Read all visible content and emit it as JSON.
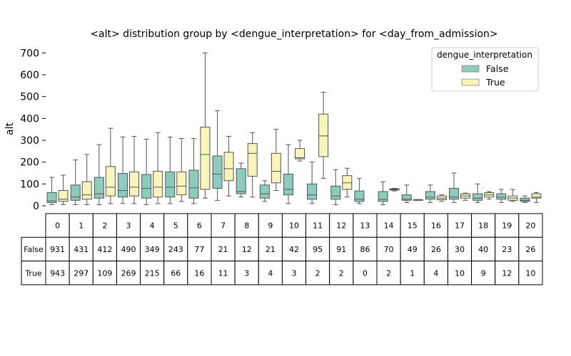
{
  "chart_data": {
    "type": "box",
    "title": "<alt> distribution group by <dengue_interpretation> for <day_from_admission>",
    "ylabel": "alt",
    "ylim": [
      0,
      750
    ],
    "yticks": [
      0,
      100,
      200,
      300,
      400,
      500,
      600,
      700
    ],
    "categories": [
      "0",
      "1",
      "2",
      "3",
      "4",
      "5",
      "6",
      "7",
      "8",
      "9",
      "10",
      "11",
      "12",
      "13",
      "14",
      "15",
      "16",
      "17",
      "18",
      "19",
      "20"
    ],
    "legend": {
      "title": "dengue_interpretation",
      "position": "top-right"
    },
    "series": [
      {
        "name": "False",
        "color": "#8dcbbd",
        "boxes": [
          {
            "whislo": 5,
            "q1": 15,
            "med": 22,
            "q3": 60,
            "whishi": 130
          },
          {
            "whislo": 5,
            "q1": 25,
            "med": 40,
            "q3": 95,
            "whishi": 210
          },
          {
            "whislo": 5,
            "q1": 35,
            "med": 55,
            "q3": 130,
            "whishi": 280
          },
          {
            "whislo": 10,
            "q1": 40,
            "med": 70,
            "q3": 148,
            "whishi": 315
          },
          {
            "whislo": 5,
            "q1": 35,
            "med": 80,
            "q3": 143,
            "whishi": 305
          },
          {
            "whislo": 10,
            "q1": 40,
            "med": 85,
            "q3": 155,
            "whishi": 315
          },
          {
            "whislo": 10,
            "q1": 35,
            "med": 82,
            "q3": 163,
            "whishi": 308
          },
          {
            "whislo": 25,
            "q1": 80,
            "med": 145,
            "q3": 228,
            "whishi": 435
          },
          {
            "whislo": 40,
            "q1": 55,
            "med": 65,
            "q3": 170,
            "whishi": 195
          },
          {
            "whislo": 20,
            "q1": 35,
            "med": 55,
            "q3": 95,
            "whishi": 115
          },
          {
            "whislo": 10,
            "q1": 50,
            "med": 75,
            "q3": 145,
            "whishi": 280
          },
          {
            "whislo": 10,
            "q1": 30,
            "med": 50,
            "q3": 100,
            "whishi": 200
          },
          {
            "whislo": 5,
            "q1": 30,
            "med": 45,
            "q3": 90,
            "whishi": 165
          },
          {
            "whislo": 10,
            "q1": 20,
            "med": 30,
            "q3": 68,
            "whishi": 125
          },
          {
            "whislo": 5,
            "q1": 20,
            "med": 30,
            "q3": 65,
            "whishi": 110
          },
          {
            "whislo": 15,
            "q1": 25,
            "med": 30,
            "q3": 50,
            "whishi": 95
          },
          {
            "whislo": 15,
            "q1": 30,
            "med": 40,
            "q3": 65,
            "whishi": 95
          },
          {
            "whislo": 15,
            "q1": 30,
            "med": 40,
            "q3": 80,
            "whishi": 150
          },
          {
            "whislo": 15,
            "q1": 25,
            "med": 35,
            "q3": 55,
            "whishi": 100
          },
          {
            "whislo": 15,
            "q1": 30,
            "med": 40,
            "q3": 55,
            "whishi": 75
          },
          {
            "whislo": 15,
            "q1": 20,
            "med": 25,
            "q3": 35,
            "whishi": 45
          }
        ]
      },
      {
        "name": "True",
        "color": "#f7f5bc",
        "boxes": [
          {
            "whislo": 5,
            "q1": 20,
            "med": 30,
            "q3": 70,
            "whishi": 140
          },
          {
            "whislo": 5,
            "q1": 30,
            "med": 50,
            "q3": 110,
            "whishi": 235
          },
          {
            "whislo": 10,
            "q1": 45,
            "med": 85,
            "q3": 180,
            "whishi": 355
          },
          {
            "whislo": 10,
            "q1": 45,
            "med": 85,
            "q3": 155,
            "whishi": 318
          },
          {
            "whislo": 10,
            "q1": 40,
            "med": 85,
            "q3": 158,
            "whishi": 335
          },
          {
            "whislo": 20,
            "q1": 50,
            "med": 90,
            "q3": 155,
            "whishi": 308
          },
          {
            "whislo": 35,
            "q1": 75,
            "med": 235,
            "q3": 360,
            "whishi": 700
          },
          {
            "whislo": 45,
            "q1": 115,
            "med": 170,
            "q3": 245,
            "whishi": 318
          },
          {
            "whislo": 40,
            "q1": 135,
            "med": 240,
            "q3": 285,
            "whishi": 335
          },
          {
            "whislo": 70,
            "q1": 105,
            "med": 158,
            "q3": 240,
            "whishi": 350
          },
          {
            "whislo": 205,
            "q1": 215,
            "med": 220,
            "q3": 262,
            "whishi": 300
          },
          {
            "whislo": 125,
            "q1": 225,
            "med": 320,
            "q3": 420,
            "whishi": 520
          },
          {
            "whislo": 40,
            "q1": 75,
            "med": 105,
            "q3": 138,
            "whishi": 172
          },
          null,
          {
            "whislo": 68,
            "q1": 72,
            "med": 75,
            "q3": 78,
            "whishi": 80
          },
          {
            "whislo": 28,
            "q1": 28,
            "med": 28,
            "q3": 28,
            "whishi": 28
          },
          {
            "whislo": 20,
            "q1": 28,
            "med": 35,
            "q3": 45,
            "whishi": 50
          },
          {
            "whislo": 25,
            "q1": 35,
            "med": 45,
            "q3": 55,
            "whishi": 58
          },
          {
            "whislo": 30,
            "q1": 40,
            "med": 50,
            "q3": 60,
            "whishi": 65
          },
          {
            "whislo": 20,
            "q1": 25,
            "med": 35,
            "q3": 45,
            "whishi": 75
          },
          {
            "whislo": 15,
            "q1": 35,
            "med": 40,
            "q3": 55,
            "whishi": 60
          }
        ]
      }
    ],
    "table": {
      "col_labels": [
        "0",
        "1",
        "2",
        "3",
        "4",
        "5",
        "6",
        "7",
        "8",
        "9",
        "10",
        "11",
        "12",
        "13",
        "14",
        "15",
        "16",
        "17",
        "18",
        "19",
        "20"
      ],
      "rows": [
        {
          "label": "False",
          "values": [
            931,
            431,
            412,
            490,
            349,
            243,
            77,
            21,
            12,
            21,
            42,
            95,
            91,
            86,
            70,
            49,
            26,
            30,
            40,
            23,
            26
          ]
        },
        {
          "label": "True",
          "values": [
            943,
            297,
            109,
            269,
            215,
            66,
            16,
            11,
            3,
            4,
            3,
            2,
            2,
            0,
            2,
            1,
            4,
            10,
            9,
            12,
            10
          ]
        }
      ]
    }
  }
}
